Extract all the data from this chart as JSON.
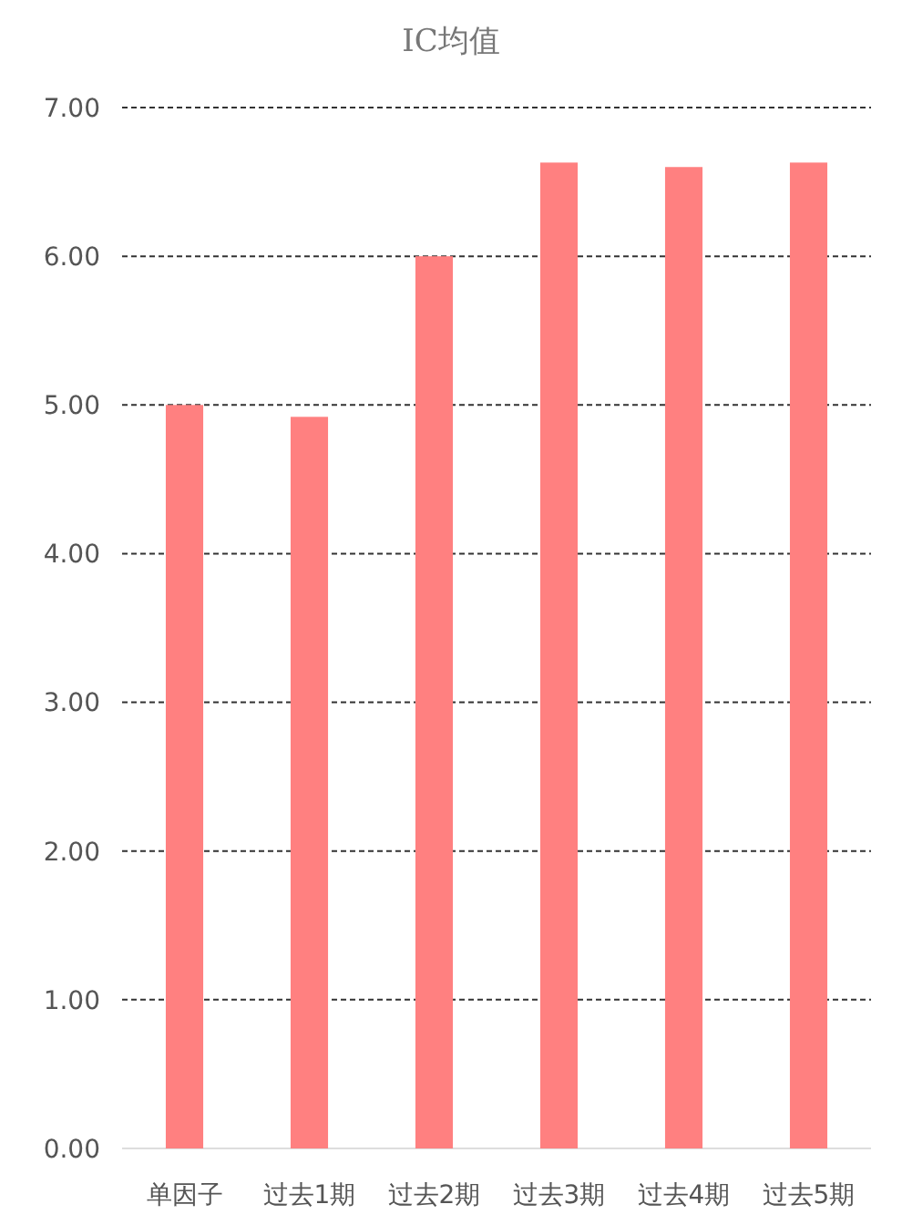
{
  "chart_data": {
    "type": "bar",
    "title": "IC均值",
    "categories": [
      "单因子",
      "过去1期",
      "过去2期",
      "过去3期",
      "过去4期",
      "过去5期"
    ],
    "values": [
      5.0,
      4.92,
      6.0,
      6.63,
      6.6,
      6.63
    ],
    "color": "#ff8080",
    "ylim": [
      0,
      7
    ],
    "yticks": [
      {
        "value": 0,
        "label": "0.00"
      },
      {
        "value": 1,
        "label": "1.00"
      },
      {
        "value": 2,
        "label": "2.00"
      },
      {
        "value": 3,
        "label": "3.00"
      },
      {
        "value": 4,
        "label": "4.00"
      },
      {
        "value": 5,
        "label": "5.00"
      },
      {
        "value": 6,
        "label": "6.00"
      },
      {
        "value": 7,
        "label": "7.00"
      }
    ],
    "grid": "y"
  }
}
